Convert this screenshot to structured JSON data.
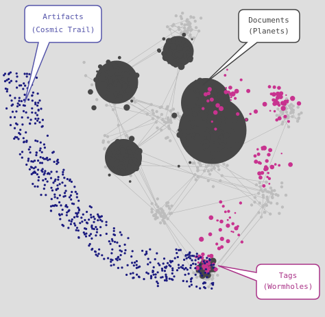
{
  "callouts": [
    {
      "title": "Artifacts",
      "subtitle": "(Cosmic Trail)"
    },
    {
      "title": "Documents",
      "subtitle": "(Planets)"
    },
    {
      "title": "Tags",
      "subtitle": "(Wormholes)"
    }
  ]
}
